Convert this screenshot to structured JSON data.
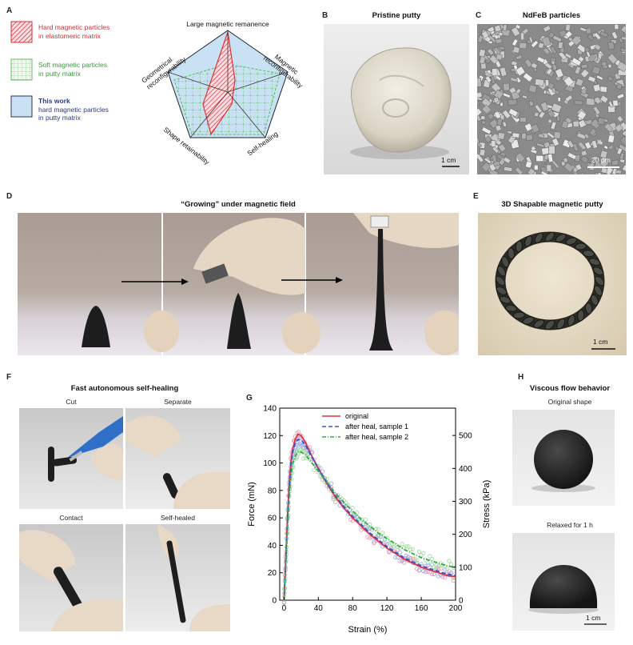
{
  "panels": {
    "A": {
      "label": "A",
      "legend": [
        {
          "text_line1": "Hard magnetic particles",
          "text_line2": "in elastomeric matrix",
          "bold": false,
          "swatch": "hatched-red"
        },
        {
          "text_line1": "Soft magnetic particles",
          "text_line2": "in putty matrix",
          "bold": false,
          "swatch": "grid-green"
        },
        {
          "text_line1": "This work",
          "text_line2": "hard magnetic particles",
          "text_line3": "in putty matrix",
          "bold": true,
          "swatch": "blue"
        }
      ],
      "radar_axes": {
        "top": "Large magnetic remanence",
        "right_line1": "Magnetic",
        "right_line2": "reconfigurability",
        "bottom_right": "Self-healing",
        "bottom_left": "Shape retainability",
        "left_line1": "Geometrical",
        "left_line2": "reconfigurability"
      }
    },
    "B": {
      "label": "B",
      "title": "Pristine putty",
      "scale": "1 cm"
    },
    "C": {
      "label": "C",
      "title": "NdFeB particles",
      "scale": "20 μm"
    },
    "D": {
      "label": "D",
      "title": "“Growing” under magnetic field"
    },
    "E": {
      "label": "E",
      "title": "3D Shapable magnetic putty",
      "scale": "1 cm"
    },
    "F": {
      "label": "F",
      "title": "Fast autonomous self-healing",
      "frames": [
        "Cut",
        "Separate",
        "Contact",
        "Self-healed"
      ]
    },
    "G": {
      "label": "G"
    },
    "H": {
      "label": "H",
      "title": "Viscous flow behavior",
      "frames": [
        "Original shape",
        "Relaxed for 1 h"
      ],
      "scale": "1 cm"
    }
  },
  "colors": {
    "red": "#e0333c",
    "blue": "#3355cc",
    "green": "#33aa44",
    "pink": "#f0a0b8",
    "lightblue": "#c9e2f3"
  },
  "chart_data": {
    "type": "line",
    "xlabel": "Strain (%)",
    "ylabel": "Force (mN)",
    "y2label": "Stress (kPa)",
    "xlim": [
      -5,
      200
    ],
    "ylim": [
      0,
      140
    ],
    "y2lim": [
      0,
      583
    ],
    "xticks": [
      "0",
      "40",
      "80",
      "120",
      "160",
      "200"
    ],
    "yticks": [
      "0",
      "20",
      "40",
      "60",
      "80",
      "100",
      "120",
      "140"
    ],
    "y2ticks": [
      "0",
      "100",
      "200",
      "300",
      "400",
      "500"
    ],
    "legend_position": "top-right",
    "series": [
      {
        "name": "original",
        "color": "#e0333c",
        "dash": "solid",
        "x": [
          0,
          2,
          4,
          6,
          8,
          10,
          13,
          16,
          20,
          25,
          30,
          40,
          50,
          60,
          70,
          80,
          90,
          100,
          110,
          120,
          130,
          140,
          150,
          160,
          170,
          180,
          190,
          200
        ],
        "y": [
          0,
          30,
          60,
          85,
          100,
          110,
          117,
          121,
          120,
          115,
          108,
          96,
          85,
          75,
          67,
          60,
          54,
          48,
          43,
          38,
          34,
          30,
          27,
          24,
          22,
          20,
          18,
          17
        ]
      },
      {
        "name": "after heal, sample 1",
        "color": "#3355cc",
        "dash": "dashed",
        "x": [
          0,
          2,
          4,
          6,
          8,
          10,
          13,
          16,
          20,
          25,
          30,
          40,
          50,
          60,
          70,
          80,
          90,
          100,
          110,
          120,
          130,
          140,
          150,
          160,
          170,
          180,
          190,
          200
        ],
        "y": [
          0,
          28,
          58,
          82,
          98,
          108,
          114,
          117,
          117,
          113,
          107,
          96,
          86,
          76,
          68,
          61,
          55,
          49,
          44,
          39,
          35,
          31,
          28,
          25,
          23,
          21,
          19,
          18
        ]
      },
      {
        "name": "after heal, sample 2",
        "color": "#33aa44",
        "dash": "dashdot",
        "x": [
          0,
          2,
          4,
          6,
          8,
          10,
          13,
          16,
          20,
          25,
          30,
          40,
          50,
          60,
          70,
          80,
          90,
          100,
          110,
          120,
          130,
          140,
          150,
          160,
          170,
          180,
          190,
          200
        ],
        "y": [
          0,
          25,
          52,
          75,
          90,
          99,
          105,
          108,
          108,
          106,
          102,
          94,
          86,
          78,
          71,
          65,
          59,
          54,
          49,
          45,
          41,
          37,
          34,
          31,
          29,
          27,
          25,
          24
        ]
      }
    ]
  }
}
